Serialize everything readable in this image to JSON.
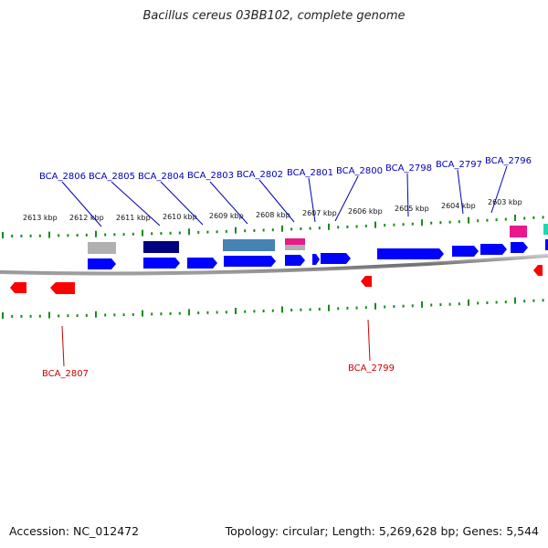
{
  "title": "Bacillus cereus 03BB102, complete genome",
  "footer": {
    "accession": "Accession: NC_012472",
    "topology": "Topology: circular; Length: 5,269,628 bp; Genes: 5,544"
  },
  "colors": {
    "backbone": "#808080",
    "tick": "#1a8a1a",
    "forward_gene": "#0000ff",
    "reverse_gene": "#ff0000",
    "forward_label": "#0000bb",
    "reverse_label": "#cc0000",
    "feature_gray": "#b0b0b0",
    "feature_navy": "#000080",
    "feature_steelblue": "#4682b4",
    "feature_pink": "#e8198b",
    "feature_teal": "#20d8b0"
  },
  "kbp_ticks": [
    "2613 kbp",
    "2612 kbp",
    "2611 kbp",
    "2610 kbp",
    "2609 kbp",
    "2608 kbp",
    "2607 kbp",
    "2606 kbp",
    "2605 kbp",
    "2604 kbp",
    "2603 kbp"
  ],
  "forward_gene_labels": [
    "BCA_2806",
    "BCA_2805",
    "BCA_2804",
    "BCA_2803",
    "BCA_2802",
    "BCA_2801",
    "BCA_2800",
    "BCA_2798",
    "BCA_2797",
    "BCA_2796"
  ],
  "reverse_gene_labels": [
    "BCA_2807",
    "BCA_2799"
  ]
}
